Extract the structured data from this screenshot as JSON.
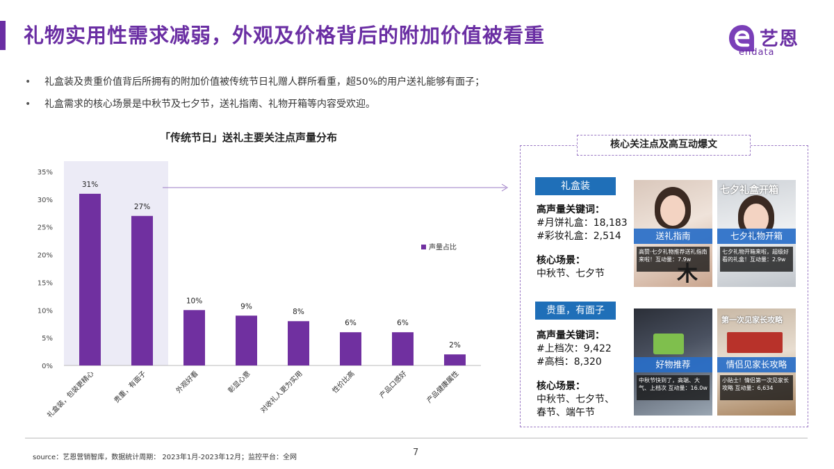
{
  "page": {
    "title": "礼物实用性需求减弱，外观及价格背后的附加价值被看重",
    "logo": {
      "cn": "艺恩",
      "en": "endata"
    },
    "bullets": [
      "礼盒装及贵重价值背后所拥有的附加价值被传统节日礼赠人群所看重，超50%的用户送礼能够有面子；",
      "礼盒需求的核心场景是中秋节及七夕节，送礼指南、礼物开箱等内容受欢迎。"
    ],
    "footer": {
      "source": "source：艺恩营销智库，数据统计周期： 2023年1月-2023年12月；监控平台：全网",
      "page_number": "7"
    }
  },
  "chart_data": {
    "type": "bar",
    "title": "「传统节日」送礼主要关注点声量分布",
    "categories": [
      "礼盒装，包装更精心",
      "贵重，有面子",
      "外观好看",
      "彰显心意",
      "对收礼人更为实用",
      "性价比高",
      "产品口感好",
      "产品健康属性"
    ],
    "series": [
      {
        "name": "声量占比",
        "values": [
          31,
          27,
          10,
          9,
          8,
          6,
          6,
          2
        ]
      }
    ],
    "data_labels": [
      "31%",
      "27%",
      "10%",
      "9%",
      "8%",
      "6%",
      "6%",
      "2%"
    ],
    "y_ticks": [
      "0%",
      "5%",
      "10%",
      "15%",
      "20%",
      "25%",
      "30%",
      "35%"
    ],
    "ylim": [
      0,
      35
    ],
    "highlight_categories": [
      0,
      1
    ],
    "legend_position": "right",
    "grid": false,
    "colors": {
      "bar": "#7030a0",
      "highlight_bg": "#ecebf6",
      "axis": "#bbbbbb"
    }
  },
  "panel": {
    "title": "核心关注点及高互动爆文",
    "groups": [
      {
        "tag": "礼盒装",
        "keywords_head": "高声量关键词：",
        "keywords": [
          "#月饼礼盒：18,183",
          "#彩妆礼盒：2,514"
        ],
        "scene_head": "核心场景：",
        "scenes": [
          "中秋节、七夕节"
        ],
        "cards": [
          {
            "caption": "送礼指南",
            "overlay": "木",
            "desc": "高赞·七夕礼物推荐送礼指南来啦！互动量：7.9w"
          },
          {
            "caption": "七夕礼物开箱",
            "overlay": "七夕礼盒开箱",
            "desc": "七夕礼物开箱来啦，超级好看的礼盒！互动量：2.9w"
          }
        ]
      },
      {
        "tag": "贵重，有面子",
        "keywords_head": "高声量关键词：",
        "keywords": [
          "#上档次：9,422",
          "#高档：8,320"
        ],
        "scene_head": "核心场景：",
        "scenes": [
          "中秋节、七夕节、",
          "春节、端午节"
        ],
        "cards": [
          {
            "caption": "好物推荐",
            "overlay": "",
            "desc": "中秋节快到了，高端、大气、上档次 互动量：16.0w"
          },
          {
            "caption": "情侣见家长攻略",
            "overlay": "第一次见家长攻略",
            "desc": "小贴士！情侣第一次见家长攻略 互动量：6,634"
          }
        ]
      }
    ]
  }
}
